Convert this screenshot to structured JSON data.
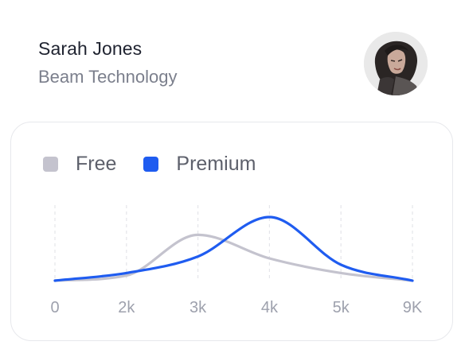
{
  "profile": {
    "name": "Sarah Jones",
    "company": "Beam Technology",
    "avatar_icon": "person-portrait"
  },
  "colors": {
    "free": "#c4c3ce",
    "premium": "#1f5cf0",
    "grid": "#e4e5ea",
    "tick": "#9ea1ad"
  },
  "chart_data": {
    "type": "area",
    "x_tick_labels": [
      "0",
      "2k",
      "3k",
      "4k",
      "5k",
      "9K"
    ],
    "series": [
      {
        "name": "Free",
        "values": [
          0.0,
          0.08,
          0.72,
          0.35,
          0.12,
          0.0
        ]
      },
      {
        "name": "Premium",
        "values": [
          0.0,
          0.12,
          0.38,
          1.0,
          0.25,
          0.0
        ]
      }
    ],
    "grid": true,
    "legend_position": "top-left",
    "ylim": [
      0,
      1
    ]
  }
}
